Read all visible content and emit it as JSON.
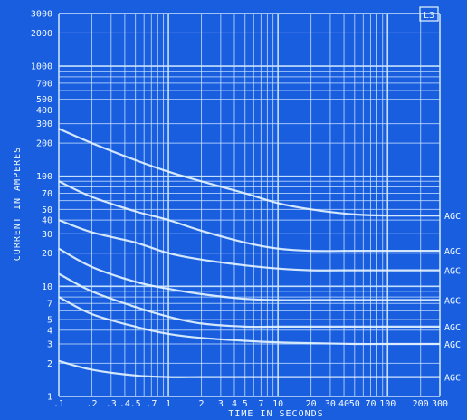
{
  "chart_data": {
    "type": "line",
    "xscale": "log",
    "yscale": "log",
    "xlim": [
      0.1,
      300
    ],
    "ylim": [
      1,
      3000
    ],
    "grid": true,
    "xlabel": "TIME IN SECONDS",
    "ylabel": "CURRENT IN AMPERES",
    "corner_label": "L3",
    "x_tick_labels": [
      ".1",
      ".2",
      ".3",
      ".4",
      ".5",
      ".7",
      "1",
      "2",
      "3",
      "4",
      "5",
      "7",
      "10",
      "20",
      "30",
      "40",
      "50",
      "70",
      "100",
      "200",
      "300"
    ],
    "y_tick_labels": [
      "1",
      "2",
      "3",
      "4",
      "5",
      "7",
      "10",
      "20",
      "30",
      "40",
      "50",
      "70",
      "100",
      "200",
      "300",
      "400",
      "500",
      "700",
      "1000",
      "2000",
      "3000"
    ],
    "series": [
      {
        "name": "AGC",
        "x": [
          0.1,
          0.2,
          0.5,
          1,
          2,
          5,
          10,
          20,
          50,
          100,
          300
        ],
        "y": [
          270,
          200,
          140,
          110,
          90,
          70,
          57,
          50,
          45,
          44,
          44
        ]
      },
      {
        "name": "AGC",
        "x": [
          0.1,
          0.2,
          0.5,
          1,
          2,
          5,
          10,
          20,
          50,
          100,
          300
        ],
        "y": [
          90,
          65,
          48,
          40,
          32,
          25,
          22,
          21,
          21,
          21,
          21
        ]
      },
      {
        "name": "AGC",
        "x": [
          0.1,
          0.2,
          0.5,
          1,
          2,
          5,
          10,
          20,
          50,
          100,
          300
        ],
        "y": [
          40,
          31,
          25,
          20,
          17.5,
          15.5,
          14.5,
          14,
          14,
          14,
          14
        ]
      },
      {
        "name": "AGC",
        "x": [
          0.1,
          0.2,
          0.5,
          1,
          2,
          5,
          10,
          20,
          50,
          100,
          300
        ],
        "y": [
          22,
          15,
          11,
          9.5,
          8.5,
          7.7,
          7.5,
          7.5,
          7.5,
          7.5,
          7.5
        ]
      },
      {
        "name": "AGC",
        "x": [
          0.1,
          0.2,
          0.5,
          1,
          2,
          5,
          10,
          20,
          50,
          100,
          300
        ],
        "y": [
          13,
          9,
          6.5,
          5.3,
          4.6,
          4.3,
          4.3,
          4.3,
          4.3,
          4.3,
          4.3
        ]
      },
      {
        "name": "AGC",
        "x": [
          0.1,
          0.2,
          0.5,
          1,
          2,
          5,
          10,
          20,
          50,
          100,
          300
        ],
        "y": [
          8,
          5.6,
          4.3,
          3.7,
          3.4,
          3.2,
          3.1,
          3.05,
          3,
          3,
          3
        ]
      },
      {
        "name": "AGC",
        "x": [
          0.1,
          0.2,
          0.5,
          1,
          2,
          5,
          10,
          20,
          50,
          100,
          300
        ],
        "y": [
          2.1,
          1.75,
          1.55,
          1.5,
          1.5,
          1.5,
          1.5,
          1.5,
          1.5,
          1.5,
          1.5
        ]
      }
    ]
  }
}
